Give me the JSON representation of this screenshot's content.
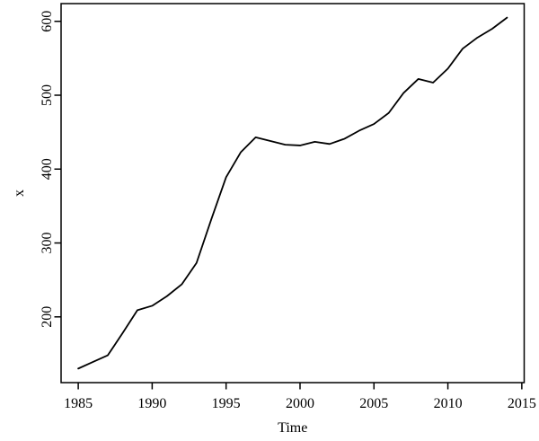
{
  "figure": {
    "xlabel": "Time",
    "ylabel": "x"
  },
  "chart_data": {
    "type": "line",
    "title": "",
    "xlabel": "Time",
    "ylabel": "x",
    "x": [
      1985,
      1986,
      1987,
      1988,
      1989,
      1990,
      1991,
      1992,
      1993,
      1994,
      1995,
      1996,
      1997,
      1998,
      1999,
      2000,
      2001,
      2002,
      2003,
      2004,
      2005,
      2006,
      2007,
      2008,
      2009,
      2010,
      2011,
      2012,
      2013,
      2014
    ],
    "series": [
      {
        "name": "x",
        "color": "#000000",
        "values": [
          130,
          139,
          148,
          178,
          209,
          215,
          228,
          244,
          273,
          332,
          389,
          423,
          443,
          438,
          433,
          432,
          437,
          434,
          441,
          452,
          461,
          476,
          503,
          522,
          517,
          536,
          563,
          578,
          590,
          605
        ]
      }
    ],
    "x_ticks": [
      1985,
      1990,
      1995,
      2000,
      2005,
      2010,
      2015
    ],
    "y_ticks": [
      200,
      300,
      400,
      500,
      600
    ],
    "xlim": [
      1983.84,
      2015.16
    ],
    "ylim": [
      111,
      624
    ],
    "grid": false,
    "legend": "none",
    "line_color": "#000000",
    "background_color": "#ffffff",
    "axis_color": "#000000"
  }
}
